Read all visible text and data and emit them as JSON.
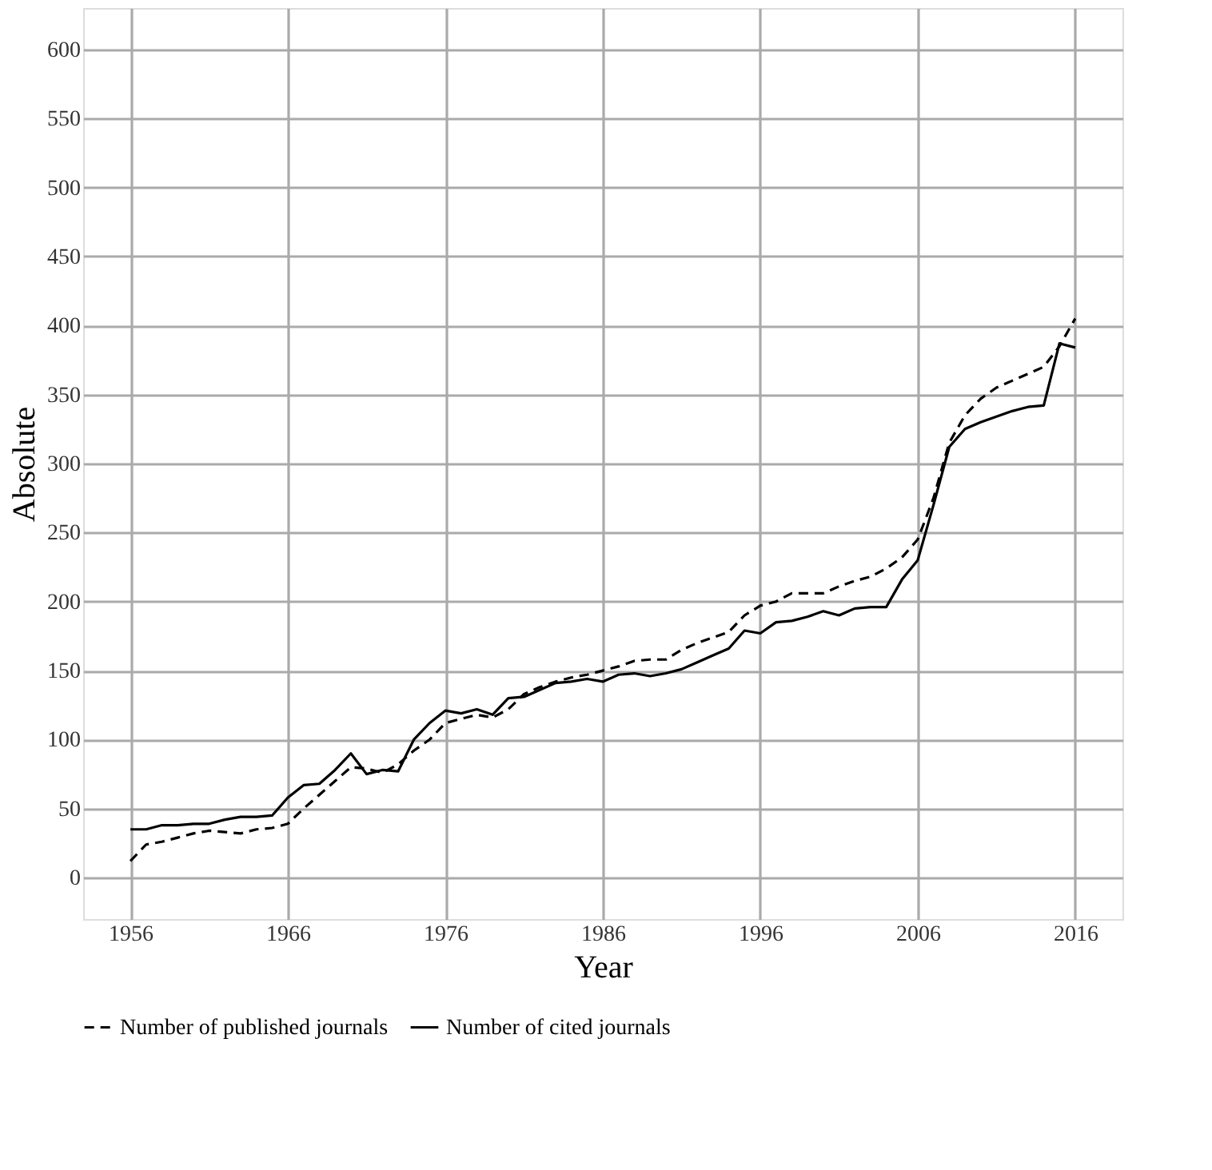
{
  "chart_data": {
    "type": "line",
    "xlabel": "Year",
    "ylabel": "Absolute",
    "x": [
      1956,
      1957,
      1958,
      1959,
      1960,
      1961,
      1962,
      1963,
      1964,
      1965,
      1966,
      1967,
      1968,
      1969,
      1970,
      1971,
      1972,
      1973,
      1974,
      1975,
      1976,
      1977,
      1978,
      1979,
      1980,
      1981,
      1982,
      1983,
      1984,
      1985,
      1986,
      1987,
      1988,
      1989,
      1990,
      1991,
      1992,
      1993,
      1994,
      1995,
      1996,
      1997,
      1998,
      1999,
      2000,
      2001,
      2002,
      2003,
      2004,
      2005,
      2006,
      2007,
      2008,
      2009,
      2010,
      2011,
      2012,
      2013,
      2014,
      2015,
      2016
    ],
    "series": [
      {
        "name": "Number of published journals",
        "color": "#000000",
        "line_style": "dashed",
        "values": [
          12,
          24,
          26,
          29,
          32,
          34,
          33,
          32,
          35,
          36,
          39,
          50,
          60,
          70,
          80,
          79,
          76,
          82,
          92,
          100,
          112,
          115,
          118,
          116,
          122,
          133,
          138,
          142,
          145,
          147,
          150,
          153,
          157,
          158,
          158,
          165,
          170,
          174,
          178,
          190,
          197,
          200,
          206,
          206,
          206,
          211,
          215,
          218,
          224,
          232,
          245,
          275,
          315,
          335,
          347,
          355,
          360,
          365,
          370,
          385,
          405
        ]
      },
      {
        "name": "Number of cited journals",
        "color": "#000000",
        "line_style": "solid",
        "values": [
          35,
          35,
          38,
          38,
          39,
          39,
          42,
          44,
          44,
          45,
          58,
          67,
          68,
          78,
          90,
          75,
          78,
          77,
          100,
          112,
          121,
          119,
          122,
          118,
          130,
          131,
          136,
          141,
          142,
          144,
          142,
          147,
          148,
          146,
          148,
          151,
          156,
          161,
          166,
          179,
          177,
          185,
          186,
          189,
          193,
          190,
          195,
          196,
          196,
          216,
          230,
          270,
          312,
          325,
          330,
          334,
          338,
          341,
          342,
          387,
          384
        ]
      }
    ],
    "xlim": [
      1953,
      2019
    ],
    "xticks": [
      1956,
      1966,
      1976,
      1986,
      1996,
      2006,
      2016
    ],
    "ylim": [
      -30,
      630
    ],
    "yticks": [
      0,
      50,
      100,
      150,
      200,
      250,
      300,
      350,
      400,
      450,
      500,
      550,
      600
    ],
    "grid": true,
    "legend": "bottom",
    "marker": "none"
  }
}
